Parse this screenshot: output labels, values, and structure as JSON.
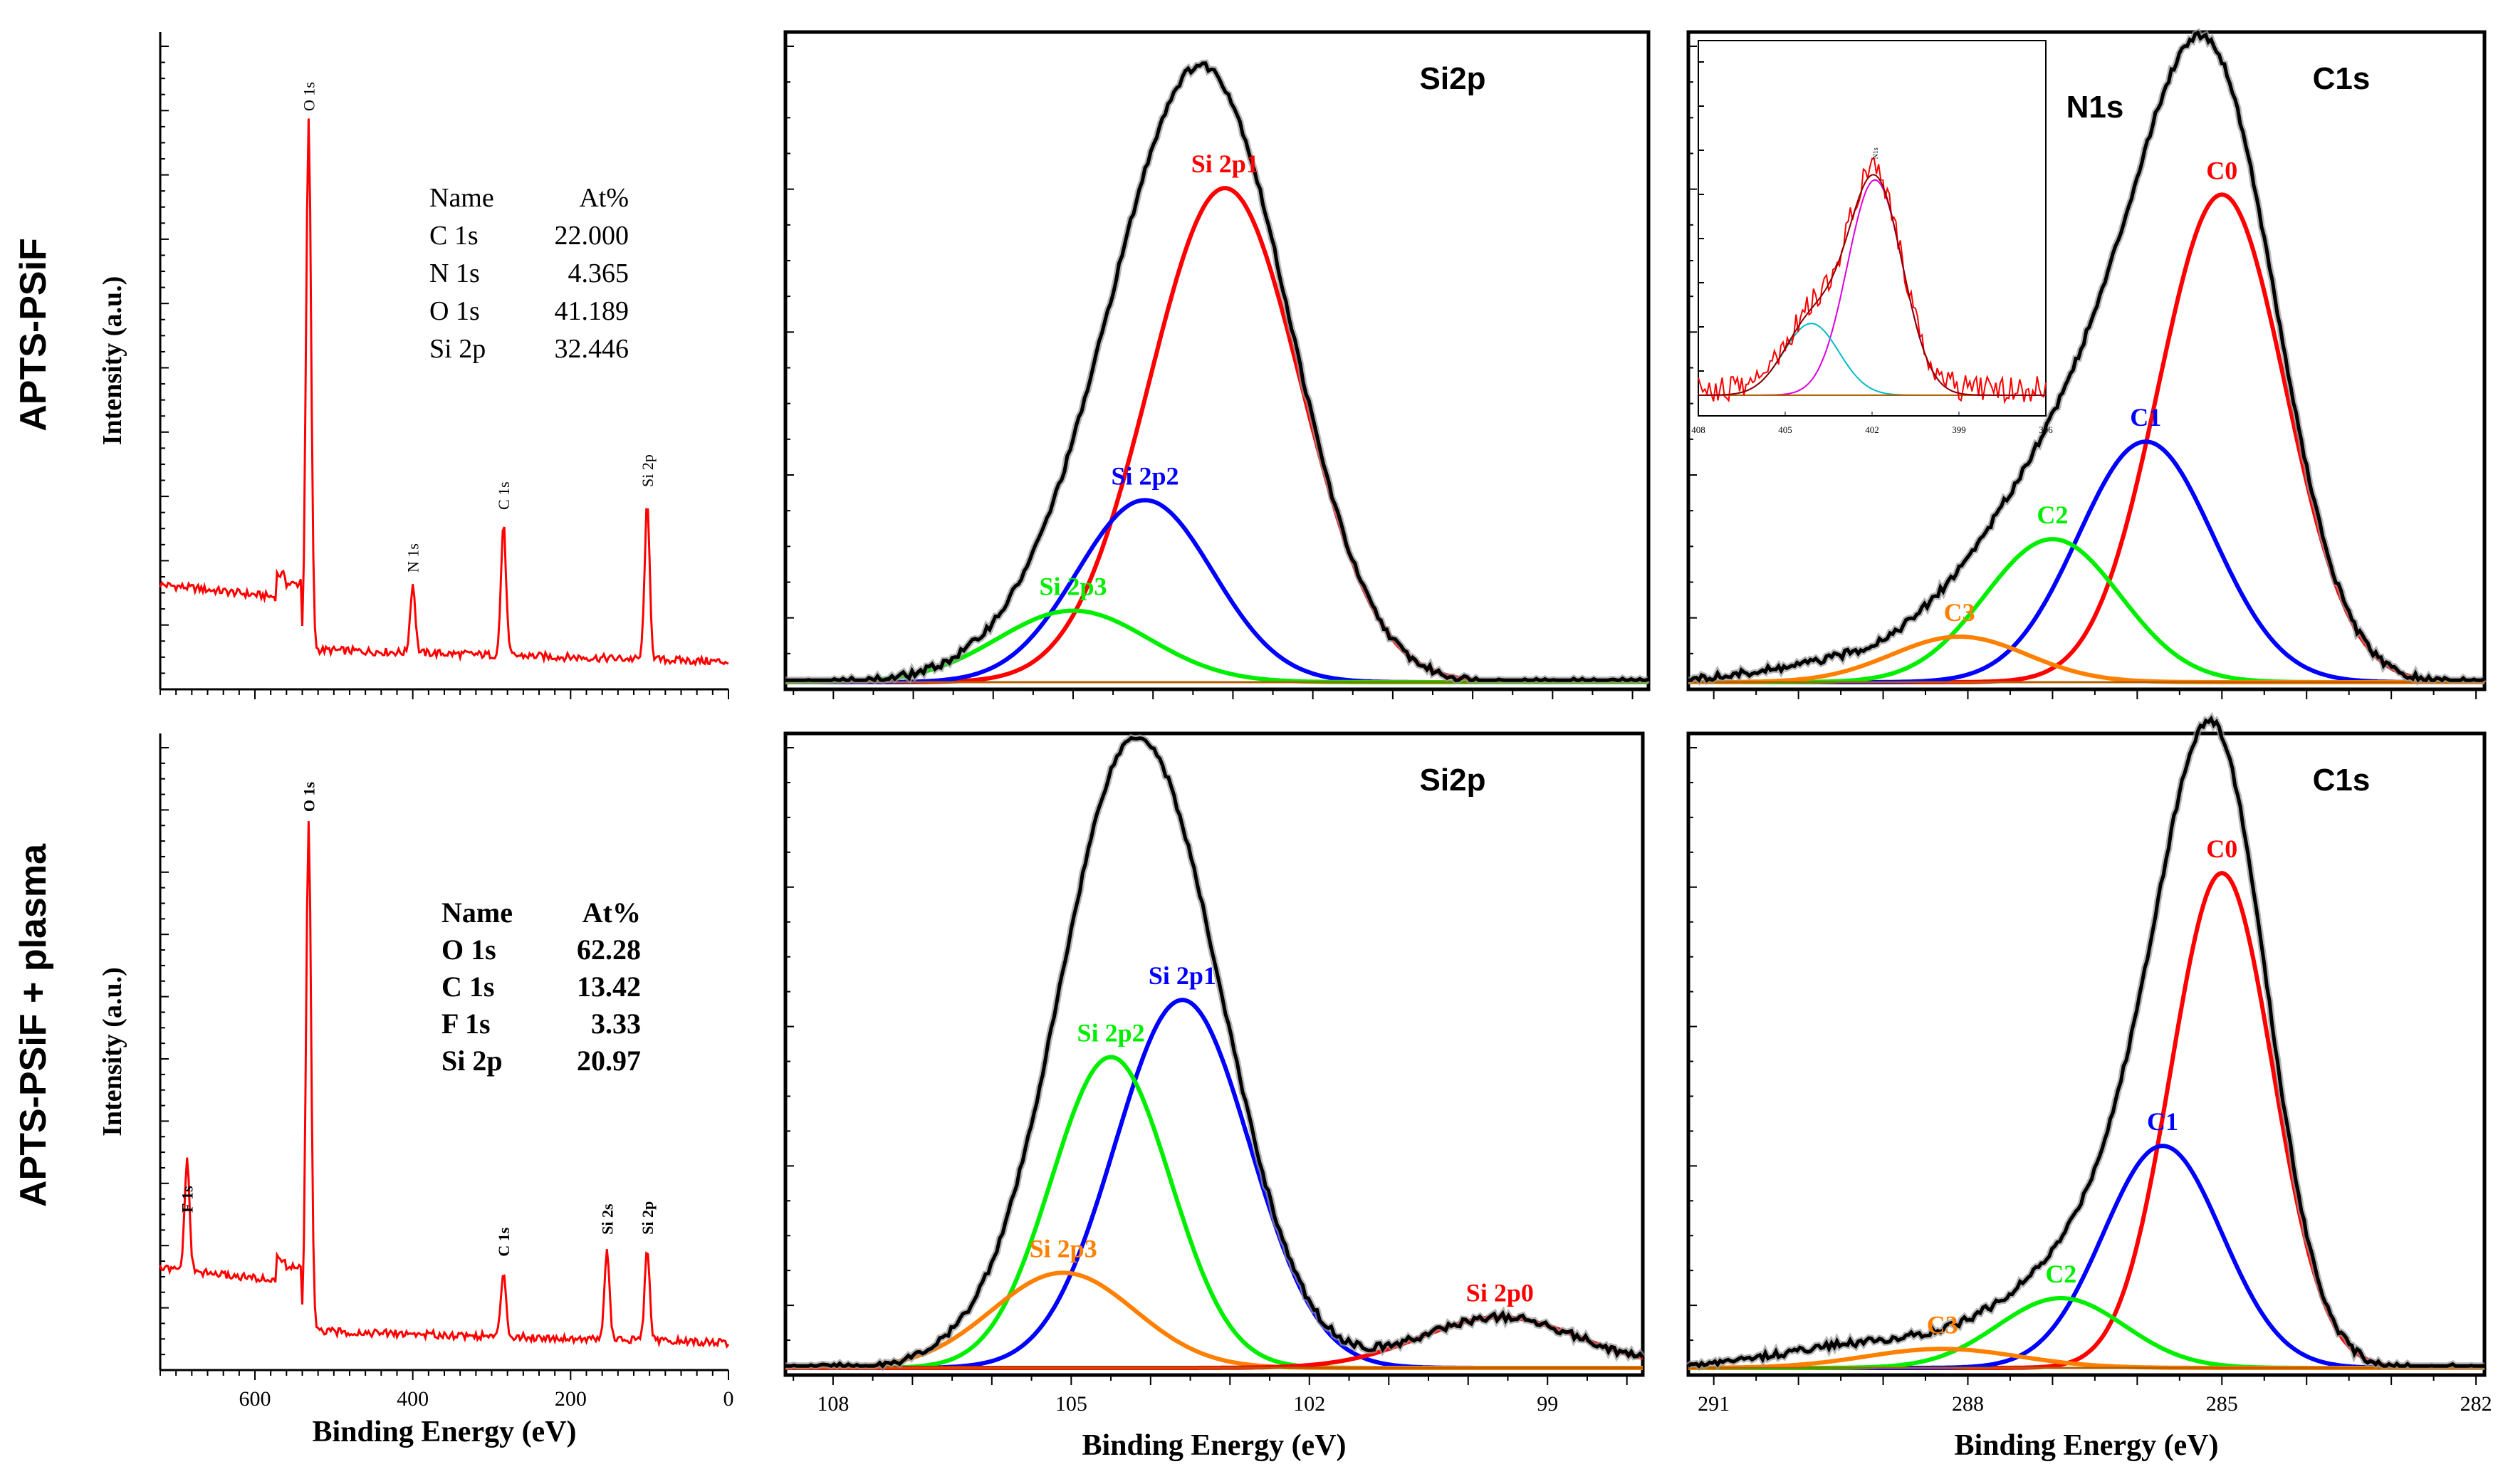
{
  "rows": [
    {
      "label": "APTS-PSiF"
    },
    {
      "label": "APTS-PSiF + plasma"
    }
  ],
  "chart_data": [
    {
      "id": "survey1",
      "type": "line",
      "ylabel": "Intensity  (a.u.)",
      "xlabel": "",
      "xlim": [
        720,
        0
      ],
      "color": "#ff0000",
      "peaks": [
        {
          "label": "O 1s",
          "x": 532,
          "y": 0.93
        },
        {
          "label": "N 1s",
          "x": 400,
          "y": 0.12
        },
        {
          "label": "C 1s",
          "x": 285,
          "y": 0.23
        },
        {
          "label": "Si 2p",
          "x": 103,
          "y": 0.27
        }
      ],
      "table": {
        "header": [
          "Name",
          "At%"
        ],
        "rows": [
          [
            "C 1s",
            "22.000"
          ],
          [
            "N 1s",
            "4.365"
          ],
          [
            "O 1s",
            "41.189"
          ],
          [
            "Si 2p",
            "32.446"
          ]
        ],
        "bold": false
      }
    },
    {
      "id": "si1",
      "type": "line",
      "title": "Si2p",
      "xlim": [
        108.6,
        97.8
      ],
      "components": [
        {
          "name": "Si 2p1",
          "color": "#ff0000",
          "center": 103.1,
          "height": 0.76,
          "width": 0.95
        },
        {
          "name": "Si 2p2",
          "color": "#0000ff",
          "center": 104.1,
          "height": 0.28,
          "width": 0.85
        },
        {
          "name": "Si 2p3",
          "color": "#00ee00",
          "center": 105.0,
          "height": 0.11,
          "width": 0.95
        }
      ]
    },
    {
      "id": "c1",
      "type": "line",
      "title": "C1s",
      "xlim": [
        291.3,
        281.9
      ],
      "components": [
        {
          "name": "C0",
          "color": "#ff0000",
          "center": 285.0,
          "height": 0.75,
          "width": 0.75
        },
        {
          "name": "C1",
          "color": "#0000ff",
          "center": 285.9,
          "height": 0.37,
          "width": 0.8
        },
        {
          "name": "C2",
          "color": "#00ee00",
          "center": 287.0,
          "height": 0.22,
          "width": 0.8
        },
        {
          "name": "C3",
          "color": "#ff8000",
          "center": 288.1,
          "height": 0.07,
          "width": 0.8
        }
      ],
      "inset": {
        "title": "N1s",
        "peak_label": "N1s",
        "xlim": [
          408,
          396
        ],
        "ticks": [
          "408",
          "405",
          "402",
          "399",
          "396"
        ],
        "components": [
          {
            "color": "#dd00dd",
            "center": 401.9,
            "height": 0.72,
            "width": 0.95
          },
          {
            "color": "#00bbcc",
            "center": 404.1,
            "height": 0.24,
            "width": 0.95
          }
        ]
      }
    },
    {
      "id": "survey2",
      "type": "line",
      "ylabel": "Intensity  (a.u.)",
      "xlabel": "Binding Energy (eV)",
      "xlim": [
        720,
        0
      ],
      "xticks": [
        "600",
        "400",
        "200",
        "0"
      ],
      "color": "#ff0000",
      "peaks": [
        {
          "label": "O 1s",
          "x": 532,
          "y": 0.93
        },
        {
          "label": "F 1s",
          "x": 686,
          "y": 0.2
        },
        {
          "label": "C 1s",
          "x": 285,
          "y": 0.12
        },
        {
          "label": "Si 2s",
          "x": 154,
          "y": 0.16
        },
        {
          "label": "Si 2p",
          "x": 103,
          "y": 0.16
        }
      ],
      "table": {
        "header": [
          "Name",
          "At%"
        ],
        "rows": [
          [
            "O 1s",
            "62.28"
          ],
          [
            "C 1s",
            "13.42"
          ],
          [
            "F 1s",
            "3.33"
          ],
          [
            "Si 2p",
            "20.97"
          ]
        ],
        "bold": true
      }
    },
    {
      "id": "si2",
      "type": "line",
      "title": "Si2p",
      "xlabel": "Binding Energy (eV)",
      "xlim": [
        108.6,
        97.8
      ],
      "xticks": [
        "108",
        "105",
        "102",
        "99"
      ],
      "components": [
        {
          "name": "Si 2p1",
          "color": "#0000ff",
          "center": 103.6,
          "height": 0.58,
          "width": 0.85
        },
        {
          "name": "Si 2p2",
          "color": "#00ee00",
          "center": 104.5,
          "height": 0.49,
          "width": 0.75
        },
        {
          "name": "Si 2p3",
          "color": "#ff8000",
          "center": 105.1,
          "height": 0.15,
          "width": 0.9
        },
        {
          "name": "Si 2p0",
          "color": "#ff0000",
          "center": 99.6,
          "height": 0.08,
          "width": 1.0
        }
      ]
    },
    {
      "id": "c2",
      "type": "line",
      "title": "C1s",
      "xlabel": "Binding Energy (eV)",
      "xlim": [
        291.3,
        281.9
      ],
      "xticks": [
        "291",
        "288",
        "285",
        "282"
      ],
      "components": [
        {
          "name": "C0",
          "color": "#ff0000",
          "center": 285.0,
          "height": 0.78,
          "width": 0.6
        },
        {
          "name": "C1",
          "color": "#0000ff",
          "center": 285.7,
          "height": 0.35,
          "width": 0.7
        },
        {
          "name": "C2",
          "color": "#00ee00",
          "center": 286.9,
          "height": 0.11,
          "width": 0.75
        },
        {
          "name": "C3",
          "color": "#ff8000",
          "center": 288.3,
          "height": 0.03,
          "width": 0.9
        }
      ]
    }
  ]
}
